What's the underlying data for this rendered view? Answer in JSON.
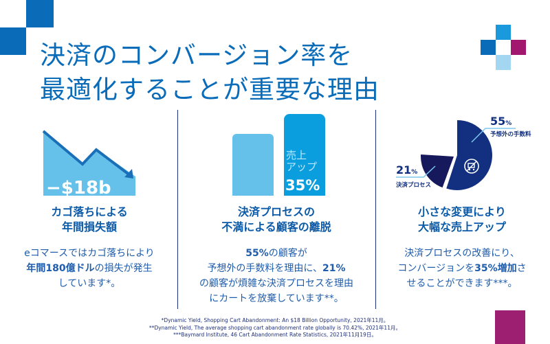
{
  "title": {
    "line1": "決済のコンバージョン率を",
    "line2": "最適化することが重要な理由"
  },
  "colors": {
    "primary_blue": "#0a6cb8",
    "light_blue": "#66c1ea",
    "bright_blue": "#0a9ede",
    "navy": "#12307f",
    "dark_navy": "#161a5c",
    "magenta": "#a2186f",
    "pale_blue": "#a3d6f0"
  },
  "columns": [
    {
      "graphic_label": "−$18b",
      "heading": [
        "カゴ落ちによる",
        "年間損失額"
      ],
      "body": [
        [
          {
            "t": "eコマースではカゴ落ちにより",
            "b": false
          }
        ],
        [
          {
            "t": "年間180億ドル",
            "b": true
          },
          {
            "t": "の損失が発生",
            "b": false
          }
        ],
        [
          {
            "t": "しています*。",
            "b": false
          }
        ]
      ]
    },
    {
      "heading": [
        "決済プロセスの",
        "不満による顧客の離脱"
      ],
      "body": [
        [
          {
            "t": "55%",
            "b": true
          },
          {
            "t": "の顧客が",
            "b": false
          }
        ],
        [
          {
            "t": "予想外の手数料を理由に、",
            "b": false
          },
          {
            "t": "21%",
            "b": true
          }
        ],
        [
          {
            "t": "の顧客が煩雑な決済プロセスを理由",
            "b": false
          }
        ],
        [
          {
            "t": "にカートを放棄しています**。",
            "b": false
          }
        ]
      ]
    },
    {
      "heading": [
        "小さな変更により",
        "大幅な売上アップ"
      ],
      "body": [
        [
          {
            "t": "決済プロセスの改善にり、",
            "b": false
          }
        ],
        [
          {
            "t": "コンバージョンを",
            "b": false
          },
          {
            "t": "35%増加",
            "b": true
          },
          {
            "t": "さ",
            "b": false
          }
        ],
        [
          {
            "t": "せることができます***。",
            "b": false
          }
        ]
      ]
    }
  ],
  "bar_graphic": {
    "label_line1": "売上",
    "label_line2": "アップ",
    "value_label": "35%",
    "increase_percent": 35
  },
  "chart_data": {
    "type": "pie",
    "slices": [
      {
        "value": 55,
        "label": "55%",
        "name": "予想外の手数料",
        "color": "#12307f",
        "icon": "cart-crossed-icon"
      },
      {
        "value": 21,
        "label": "21%",
        "name": "決済プロセス",
        "color": "#161a5c"
      }
    ]
  },
  "footnotes": [
    "*Dynamic Yield, Shopping Cart Abandonment: An $18 Billion Opportunity, 2021年11月。",
    "**Dynamic Yield, The average shopping cart abandonment rate globally is 70.42%, 2021年11月。",
    "***Baymard Institute, 46 Cart Abandonment Rate Statistics, 2021年11月19日。"
  ]
}
